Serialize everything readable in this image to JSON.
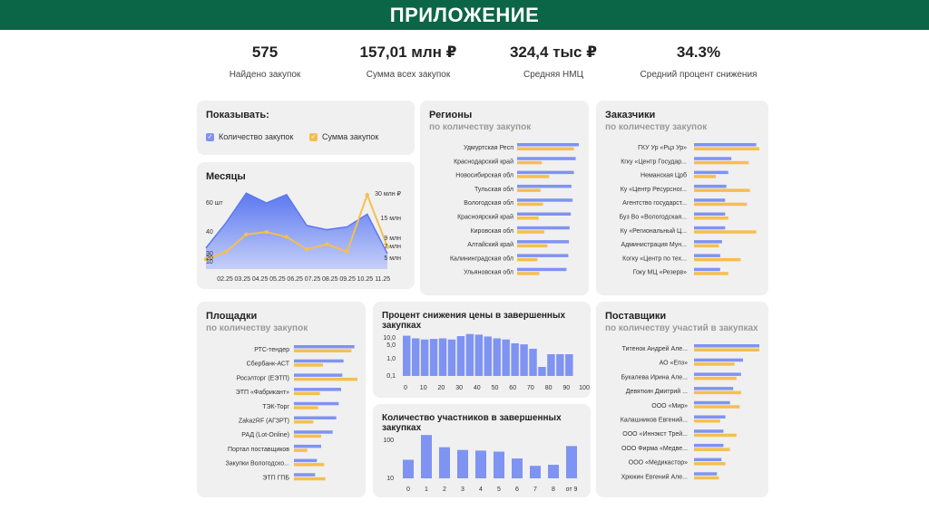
{
  "header": {
    "title": "ПРИЛОЖЕНИЕ"
  },
  "colors": {
    "header_bg": "#0b6647",
    "blue": "#7f93f2",
    "orange": "#f5bf4f",
    "card_bg": "#f0f0f0"
  },
  "stats": [
    {
      "value": "575",
      "label": "Найдено закупок"
    },
    {
      "value": "157,01 млн ₽",
      "label": "Сумма всех закупок"
    },
    {
      "value": "324,4 тыс ₽",
      "label": "Средняя НМЦ"
    },
    {
      "value": "34.3%",
      "label": "Средний процент снижения"
    }
  ],
  "show": {
    "title": "Показывать:",
    "option_count": "Количество закупок",
    "option_sum": "Сумма закупок",
    "checkbox_icon": "check-icon"
  },
  "months": {
    "title": "Месяцы"
  },
  "regions": {
    "title": "Регионы",
    "subtitle": "по количеству закупок"
  },
  "customers": {
    "title": "Заказчики",
    "subtitle": "по количеству закупок"
  },
  "platforms": {
    "title": "Площадки",
    "subtitle": "по количеству закупок"
  },
  "discount": {
    "title": "Процент снижения цены в завершенных закупках"
  },
  "participants": {
    "title": "Количество участников в завершенных закупках"
  },
  "suppliers": {
    "title": "Поставщики",
    "subtitle": "по количеству участий в закупках"
  },
  "chart_data": [
    {
      "id": "months",
      "type": "area",
      "title": "Месяцы",
      "categories": [
        "02.25",
        "03.25",
        "04.25",
        "05.25",
        "06.25",
        "07.25",
        "08.25",
        "09.25",
        "10.25",
        "11.25"
      ],
      "left_ticks": [
        "60 шт",
        "40",
        "30",
        "20",
        "10"
      ],
      "right_ticks": [
        "30 млн ₽",
        "15 млн",
        "9 млн",
        "7 млн",
        "5 млн"
      ],
      "series": [
        {
          "name": "Количество закупок",
          "values": [
            25,
            43,
            64,
            57,
            63,
            41,
            38,
            40,
            49,
            21
          ]
        },
        {
          "name": "Сумма закупок",
          "values": [
            4,
            7,
            14,
            15,
            13,
            8,
            10,
            7,
            30,
            9
          ]
        }
      ]
    },
    {
      "id": "regions",
      "type": "bar",
      "title": "Регионы",
      "categories": [
        "Удмуртская Респ",
        "Краснодарский край",
        "Новосибирская обл",
        "Тульская обл",
        "Вологодская обл",
        "Красноярский край",
        "Кировская обл",
        "Алтайский край",
        "Калининградская обл",
        "Ульяновская обл"
      ],
      "series": [
        {
          "name": "Количество закупок",
          "values": [
            100,
            95,
            92,
            88,
            90,
            87,
            85,
            84,
            83,
            80
          ]
        },
        {
          "name": "Сумма закупок",
          "values": [
            92,
            40,
            52,
            38,
            42,
            35,
            44,
            49,
            33,
            36
          ]
        }
      ]
    },
    {
      "id": "customers",
      "type": "bar",
      "title": "Заказчики",
      "categories": [
        "ГКУ Ур «Рцз Ур»",
        "Кгку «Центр Государ...",
        "Неманская Црб",
        "Ку «Центр Ресурсног...",
        "Агентство государст...",
        "Буз Во «Вологодская...",
        "Ку «Региональный Ц...",
        "Администрация Мун...",
        "Когку «Центр по тех...",
        "Гоку МЦ «Резерв»"
      ],
      "series": [
        {
          "name": "Количество закупок",
          "values": [
            100,
            60,
            55,
            52,
            50,
            50,
            50,
            45,
            42,
            42
          ]
        },
        {
          "name": "Сумма закупок",
          "values": [
            105,
            88,
            35,
            90,
            85,
            55,
            100,
            40,
            75,
            55
          ]
        }
      ]
    },
    {
      "id": "platforms",
      "type": "bar",
      "title": "Площадки",
      "categories": [
        "РТС-тендер",
        "Сбербанк-АСТ",
        "Росэлторг (ЕЭТП)",
        "ЭТП «Фабрикант»",
        "ТЭК-Торг",
        "ZakazRF (АГЗРТ)",
        "РАД (Lot-Online)",
        "Портал поставщиков",
        "Закупки Вологодско...",
        "ЭТП ГПБ"
      ],
      "series": [
        {
          "name": "Количество закупок",
          "values": [
            100,
            82,
            80,
            78,
            74,
            70,
            64,
            45,
            38,
            35
          ]
        },
        {
          "name": "Сумма закупок",
          "values": [
            95,
            48,
            105,
            43,
            40,
            32,
            45,
            22,
            50,
            52
          ]
        }
      ]
    },
    {
      "id": "discount",
      "type": "bar",
      "title": "Процент снижения цены в завершенных закупках",
      "categories": [
        "0",
        "5",
        "10",
        "15",
        "20",
        "25",
        "30",
        "35",
        "40",
        "45",
        "50",
        "55",
        "60",
        "65",
        "70",
        "75",
        "80",
        "85",
        "90"
      ],
      "x_ticks": [
        "0",
        "10",
        "20",
        "30",
        "40",
        "50",
        "60",
        "70",
        "80",
        "90",
        "100"
      ],
      "y_ticks": [
        "10,0",
        "5,0",
        "1,0",
        "0,1"
      ],
      "values": [
        10.5,
        7.5,
        6.5,
        7.0,
        7.5,
        6.5,
        10.0,
        13.0,
        12.0,
        9.5,
        7.5,
        6.5,
        4.0,
        3.5,
        2.0,
        0.2,
        1.0,
        1.0,
        1.0
      ]
    },
    {
      "id": "participants",
      "type": "bar",
      "title": "Количество участников в завершенных закупках",
      "categories": [
        "0",
        "1",
        "2",
        "3",
        "4",
        "5",
        "6",
        "7",
        "8",
        "от 9"
      ],
      "y_ticks": [
        "100",
        "10"
      ],
      "values": [
        18,
        135,
        50,
        40,
        38,
        35,
        20,
        11,
        12,
        55
      ]
    },
    {
      "id": "suppliers",
      "type": "bar",
      "title": "Поставщики",
      "categories": [
        "Титенок Андрей Але...",
        "АО «Епз»",
        "Букалева Ирина Але...",
        "Девяткин Дмитрий ...",
        "ООО «Мир»",
        "Калашников Евгений...",
        "ООО «Иннэкст Трей...",
        "ООО Фирма «Медве...",
        "ООО «Медикастор»",
        "Хрюкин Евгений Але..."
      ],
      "series": [
        {
          "name": "Количество закупок",
          "values": [
            100,
            75,
            72,
            60,
            55,
            48,
            45,
            45,
            42,
            35
          ]
        },
        {
          "name": "Сумма закупок",
          "values": [
            100,
            62,
            65,
            72,
            70,
            40,
            65,
            55,
            48,
            38
          ]
        }
      ]
    }
  ]
}
